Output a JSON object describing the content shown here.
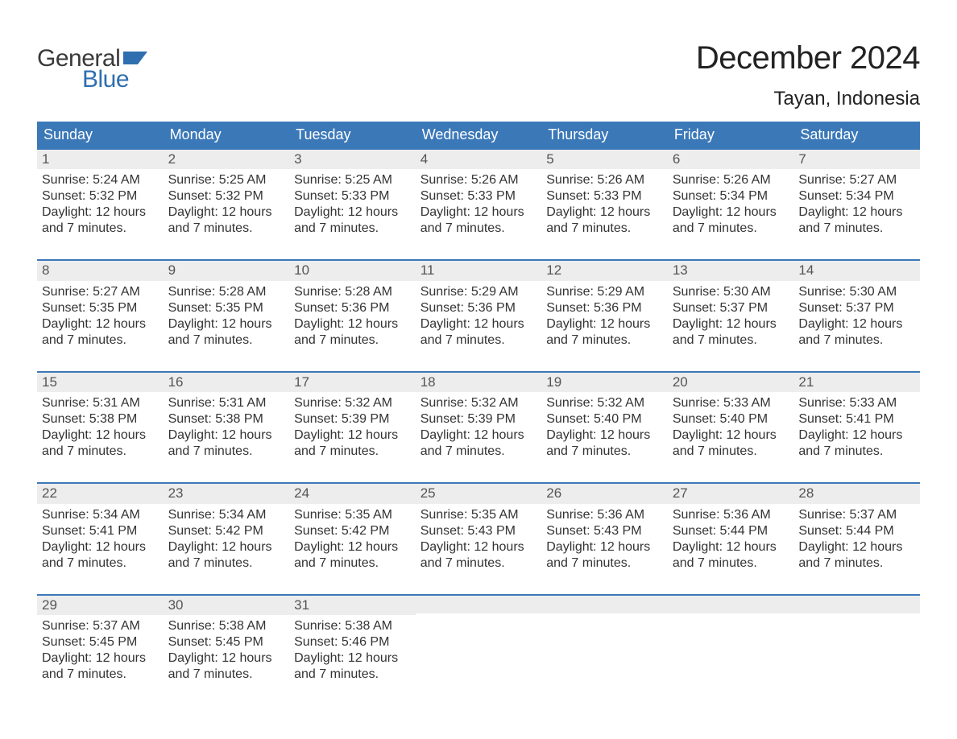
{
  "brand": {
    "part1": "General",
    "part2": "Blue",
    "flag_color": "#2f6fb0"
  },
  "title": "December 2024",
  "location": "Tayan, Indonesia",
  "colors": {
    "header_bg": "#3b78b8",
    "header_text": "#ffffff",
    "daynum_bg": "#ededed",
    "daynum_text": "#555555",
    "body_text": "#333333",
    "row_border": "#3b78b8",
    "page_bg": "#ffffff"
  },
  "fonts": {
    "title_size_pt": 40,
    "location_size_pt": 24,
    "header_size_pt": 18,
    "cell_size_pt": 16
  },
  "dayHeaders": [
    "Sunday",
    "Monday",
    "Tuesday",
    "Wednesday",
    "Thursday",
    "Friday",
    "Saturday"
  ],
  "weeks": [
    [
      {
        "n": "1",
        "lines": [
          "Sunrise: 5:24 AM",
          "Sunset: 5:32 PM",
          "Daylight: 12 hours",
          "and 7 minutes."
        ]
      },
      {
        "n": "2",
        "lines": [
          "Sunrise: 5:25 AM",
          "Sunset: 5:32 PM",
          "Daylight: 12 hours",
          "and 7 minutes."
        ]
      },
      {
        "n": "3",
        "lines": [
          "Sunrise: 5:25 AM",
          "Sunset: 5:33 PM",
          "Daylight: 12 hours",
          "and 7 minutes."
        ]
      },
      {
        "n": "4",
        "lines": [
          "Sunrise: 5:26 AM",
          "Sunset: 5:33 PM",
          "Daylight: 12 hours",
          "and 7 minutes."
        ]
      },
      {
        "n": "5",
        "lines": [
          "Sunrise: 5:26 AM",
          "Sunset: 5:33 PM",
          "Daylight: 12 hours",
          "and 7 minutes."
        ]
      },
      {
        "n": "6",
        "lines": [
          "Sunrise: 5:26 AM",
          "Sunset: 5:34 PM",
          "Daylight: 12 hours",
          "and 7 minutes."
        ]
      },
      {
        "n": "7",
        "lines": [
          "Sunrise: 5:27 AM",
          "Sunset: 5:34 PM",
          "Daylight: 12 hours",
          "and 7 minutes."
        ]
      }
    ],
    [
      {
        "n": "8",
        "lines": [
          "Sunrise: 5:27 AM",
          "Sunset: 5:35 PM",
          "Daylight: 12 hours",
          "and 7 minutes."
        ]
      },
      {
        "n": "9",
        "lines": [
          "Sunrise: 5:28 AM",
          "Sunset: 5:35 PM",
          "Daylight: 12 hours",
          "and 7 minutes."
        ]
      },
      {
        "n": "10",
        "lines": [
          "Sunrise: 5:28 AM",
          "Sunset: 5:36 PM",
          "Daylight: 12 hours",
          "and 7 minutes."
        ]
      },
      {
        "n": "11",
        "lines": [
          "Sunrise: 5:29 AM",
          "Sunset: 5:36 PM",
          "Daylight: 12 hours",
          "and 7 minutes."
        ]
      },
      {
        "n": "12",
        "lines": [
          "Sunrise: 5:29 AM",
          "Sunset: 5:36 PM",
          "Daylight: 12 hours",
          "and 7 minutes."
        ]
      },
      {
        "n": "13",
        "lines": [
          "Sunrise: 5:30 AM",
          "Sunset: 5:37 PM",
          "Daylight: 12 hours",
          "and 7 minutes."
        ]
      },
      {
        "n": "14",
        "lines": [
          "Sunrise: 5:30 AM",
          "Sunset: 5:37 PM",
          "Daylight: 12 hours",
          "and 7 minutes."
        ]
      }
    ],
    [
      {
        "n": "15",
        "lines": [
          "Sunrise: 5:31 AM",
          "Sunset: 5:38 PM",
          "Daylight: 12 hours",
          "and 7 minutes."
        ]
      },
      {
        "n": "16",
        "lines": [
          "Sunrise: 5:31 AM",
          "Sunset: 5:38 PM",
          "Daylight: 12 hours",
          "and 7 minutes."
        ]
      },
      {
        "n": "17",
        "lines": [
          "Sunrise: 5:32 AM",
          "Sunset: 5:39 PM",
          "Daylight: 12 hours",
          "and 7 minutes."
        ]
      },
      {
        "n": "18",
        "lines": [
          "Sunrise: 5:32 AM",
          "Sunset: 5:39 PM",
          "Daylight: 12 hours",
          "and 7 minutes."
        ]
      },
      {
        "n": "19",
        "lines": [
          "Sunrise: 5:32 AM",
          "Sunset: 5:40 PM",
          "Daylight: 12 hours",
          "and 7 minutes."
        ]
      },
      {
        "n": "20",
        "lines": [
          "Sunrise: 5:33 AM",
          "Sunset: 5:40 PM",
          "Daylight: 12 hours",
          "and 7 minutes."
        ]
      },
      {
        "n": "21",
        "lines": [
          "Sunrise: 5:33 AM",
          "Sunset: 5:41 PM",
          "Daylight: 12 hours",
          "and 7 minutes."
        ]
      }
    ],
    [
      {
        "n": "22",
        "lines": [
          "Sunrise: 5:34 AM",
          "Sunset: 5:41 PM",
          "Daylight: 12 hours",
          "and 7 minutes."
        ]
      },
      {
        "n": "23",
        "lines": [
          "Sunrise: 5:34 AM",
          "Sunset: 5:42 PM",
          "Daylight: 12 hours",
          "and 7 minutes."
        ]
      },
      {
        "n": "24",
        "lines": [
          "Sunrise: 5:35 AM",
          "Sunset: 5:42 PM",
          "Daylight: 12 hours",
          "and 7 minutes."
        ]
      },
      {
        "n": "25",
        "lines": [
          "Sunrise: 5:35 AM",
          "Sunset: 5:43 PM",
          "Daylight: 12 hours",
          "and 7 minutes."
        ]
      },
      {
        "n": "26",
        "lines": [
          "Sunrise: 5:36 AM",
          "Sunset: 5:43 PM",
          "Daylight: 12 hours",
          "and 7 minutes."
        ]
      },
      {
        "n": "27",
        "lines": [
          "Sunrise: 5:36 AM",
          "Sunset: 5:44 PM",
          "Daylight: 12 hours",
          "and 7 minutes."
        ]
      },
      {
        "n": "28",
        "lines": [
          "Sunrise: 5:37 AM",
          "Sunset: 5:44 PM",
          "Daylight: 12 hours",
          "and 7 minutes."
        ]
      }
    ],
    [
      {
        "n": "29",
        "lines": [
          "Sunrise: 5:37 AM",
          "Sunset: 5:45 PM",
          "Daylight: 12 hours",
          "and 7 minutes."
        ]
      },
      {
        "n": "30",
        "lines": [
          "Sunrise: 5:38 AM",
          "Sunset: 5:45 PM",
          "Daylight: 12 hours",
          "and 7 minutes."
        ]
      },
      {
        "n": "31",
        "lines": [
          "Sunrise: 5:38 AM",
          "Sunset: 5:46 PM",
          "Daylight: 12 hours",
          "and 7 minutes."
        ]
      },
      null,
      null,
      null,
      null
    ]
  ]
}
